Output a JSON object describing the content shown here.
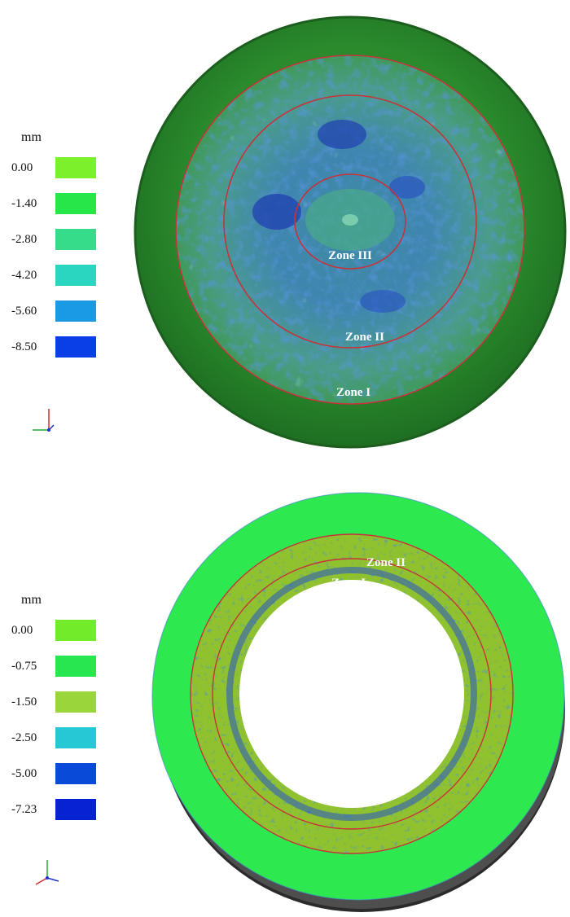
{
  "top": {
    "legend": {
      "unit": "mm",
      "items": [
        {
          "value": "0.00",
          "color": "#7cf02a"
        },
        {
          "value": "-1.40",
          "color": "#27e64a"
        },
        {
          "value": "-2.80",
          "color": "#37dc8a"
        },
        {
          "value": "-4.20",
          "color": "#2bd6c0"
        },
        {
          "value": "-5.60",
          "color": "#1a9ae2"
        },
        {
          "value": "-8.50",
          "color": "#0a3ee6"
        }
      ]
    },
    "zones": [
      "Zone III",
      "Zone II",
      "Zone I"
    ]
  },
  "bottom": {
    "legend": {
      "unit": "mm",
      "items": [
        {
          "value": "0.00",
          "color": "#72ec2a"
        },
        {
          "value": "-0.75",
          "color": "#27e650"
        },
        {
          "value": "-1.50",
          "color": "#9ad63a"
        },
        {
          "value": "-2.50",
          "color": "#26c8d6"
        },
        {
          "value": "-5.00",
          "color": "#0a4ad8"
        },
        {
          "value": "-7.23",
          "color": "#0622d2"
        }
      ]
    },
    "zones": [
      "Zone II",
      "Zone I"
    ]
  }
}
